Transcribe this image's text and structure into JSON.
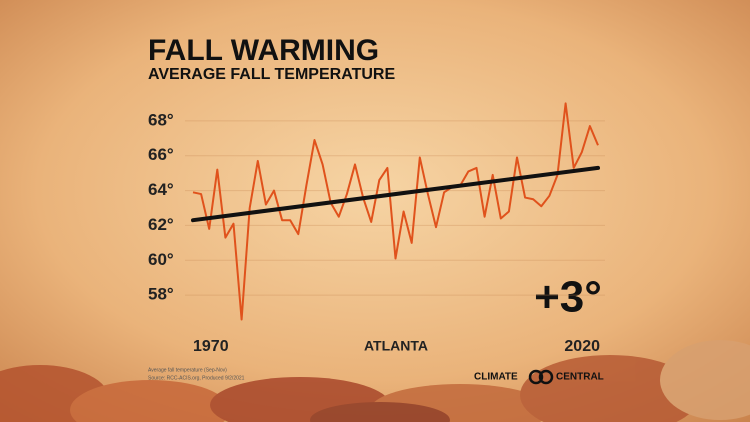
{
  "chart_data": {
    "type": "line",
    "title": "FALL WARMING",
    "subtitle": "AVERAGE FALL TEMPERATURE",
    "location": "ATLANTA",
    "annotation": "+3°",
    "notes": [
      "Average fall temperature (Sep-Nov)",
      "Source: RCC-ACIS.org, Produced 9/2/2021"
    ],
    "logo": [
      "CLIMATE",
      "CENTRAL"
    ],
    "x": [
      1970,
      1971,
      1972,
      1973,
      1974,
      1975,
      1976,
      1977,
      1978,
      1979,
      1980,
      1981,
      1982,
      1983,
      1984,
      1985,
      1986,
      1987,
      1988,
      1989,
      1990,
      1991,
      1992,
      1993,
      1994,
      1995,
      1996,
      1997,
      1998,
      1999,
      2000,
      2001,
      2002,
      2003,
      2004,
      2005,
      2006,
      2007,
      2008,
      2009,
      2010,
      2011,
      2012,
      2013,
      2014,
      2015,
      2016,
      2017,
      2018,
      2019,
      2020
    ],
    "series": [
      {
        "color": "#e0521c",
        "values": [
          63.9,
          63.8,
          61.8,
          65.2,
          61.3,
          62.1,
          56.6,
          63.0,
          65.7,
          63.2,
          64.0,
          62.3,
          62.3,
          61.5,
          64.3,
          66.9,
          65.5,
          63.3,
          62.5,
          63.8,
          65.5,
          63.6,
          62.2,
          64.6,
          65.3,
          60.1,
          62.8,
          61.0,
          65.9,
          63.8,
          61.9,
          63.9,
          64.2,
          64.3,
          65.1,
          65.3,
          62.5,
          64.9,
          62.4,
          62.8,
          65.9,
          63.6,
          63.5,
          63.1,
          63.7,
          64.9,
          69.0,
          65.3,
          66.2,
          67.7,
          66.6
        ]
      }
    ],
    "trend": {
      "color": "#111111",
      "x": [
        1970,
        2020
      ],
      "values": [
        62.3,
        65.3
      ]
    },
    "xlim": [
      1970,
      2020
    ],
    "xticks": [
      1970,
      2020
    ],
    "ylim": [
      56,
      70
    ],
    "yticks": [
      {
        "value": 58,
        "label": "58°"
      },
      {
        "value": 60,
        "label": "60°"
      },
      {
        "value": 62,
        "label": "62°"
      },
      {
        "value": 64,
        "label": "64°"
      },
      {
        "value": 66,
        "label": "66°"
      },
      {
        "value": 68,
        "label": "68°"
      }
    ],
    "grid": true
  }
}
